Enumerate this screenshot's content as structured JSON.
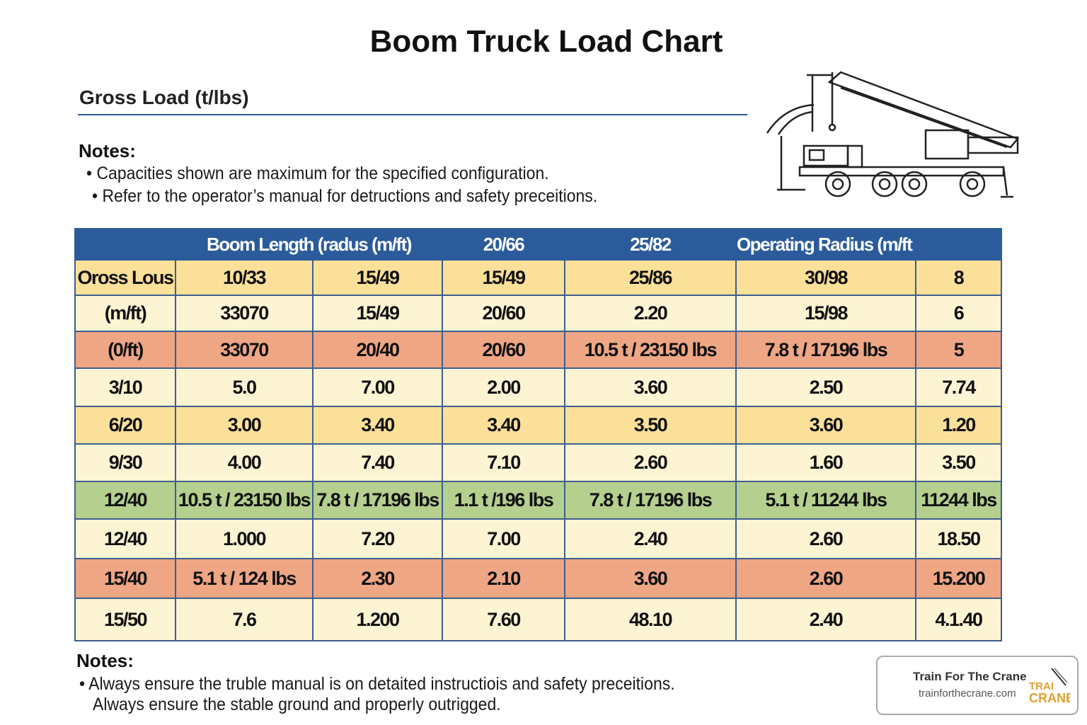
{
  "title": "Boom Truck Load Chart",
  "subtitle": "Gross Load (t/lbs)",
  "notes_top": {
    "heading": "Notes:",
    "items": [
      "• Capacities shown are maximum for the specified configuration.",
      "• Refer to the operator’s manual for detructions and safety preceitions."
    ]
  },
  "table": {
    "header": [
      "",
      "Boom Length (radus (m/ft)",
      "20/66",
      "25/82",
      "Operating Radius (m/ft"
    ],
    "rows": [
      {
        "style": "gold",
        "cells": [
          "Oross Lous",
          "10/33",
          "15/49",
          "15/49",
          "25/86",
          "30/98",
          "8"
        ]
      },
      {
        "style": "cream",
        "cells": [
          "(m/ft)",
          "33070",
          "15/49",
          "20/60",
          "2.20",
          "15/98",
          "6"
        ]
      },
      {
        "style": "salmon",
        "cells": [
          "(0/ft)",
          "33070",
          "20/40",
          "20/60",
          "10.5 t / 23150 lbs",
          "7.8 t / 17196 lbs",
          "5"
        ]
      },
      {
        "style": "cream",
        "cells": [
          "3/10",
          "5.0",
          "7.00",
          "2.00",
          "3.60",
          "2.50",
          "7.74"
        ]
      },
      {
        "style": "gold",
        "cells": [
          "6/20",
          "3.00",
          "3.40",
          "3.40",
          "3.50",
          "3.60",
          "1.20"
        ]
      },
      {
        "style": "cream",
        "cells": [
          "9/30",
          "4.00",
          "7.40",
          "7.10",
          "2.60",
          "1.60",
          "3.50"
        ]
      },
      {
        "style": "green",
        "cells": [
          "12/40",
          "10.5 t / 23150 lbs",
          "7.8 t / 17196 lbs",
          "1.1 t /196 lbs",
          "7.8 t / 17196 lbs",
          "5.1 t / 11244 lbs",
          "11244 lbs"
        ]
      },
      {
        "style": "cream",
        "cells": [
          "12/40",
          "1.000",
          "7.20",
          "7.00",
          "2.40",
          "2.60",
          "18.50"
        ]
      },
      {
        "style": "salmon",
        "cells": [
          "15/40",
          "5.1 t / 124 lbs",
          "2.30",
          "2.10",
          "3.60",
          "2.60",
          "15.200"
        ]
      },
      {
        "style": "cream",
        "cells": [
          "15/50",
          "7.6",
          "1.200",
          "7.60",
          "48.10",
          "2.40",
          "4.1.40"
        ]
      }
    ]
  },
  "notes_bottom": {
    "heading": "Notes:",
    "items": [
      "• Always ensure the truble manual is on detaited instructiois and safety preceitions.",
      "Always ensure the stable ground and properly outrigged."
    ]
  },
  "logo": {
    "name": "Train For The Crane",
    "url": "trainforthecrane.com",
    "mark": "TRAIN FOR THE CRANE"
  },
  "colors": {
    "header": "#2b5b9a",
    "gold": "#fbe09a",
    "cream": "#fdf4d3",
    "salmon": "#eea685",
    "green": "#b5cf8e"
  }
}
